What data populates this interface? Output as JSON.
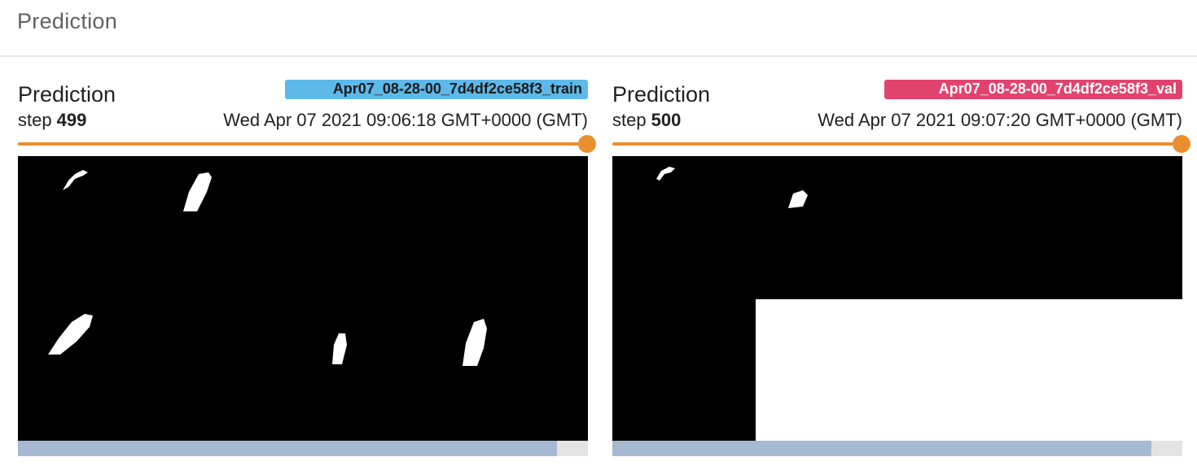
{
  "section": {
    "title": "Prediction"
  },
  "cards": [
    {
      "title": "Prediction",
      "run": "Apr07_08-28-00_7d4df2ce58f3_train",
      "run_color": "#5cb9ea",
      "step_label": "step",
      "step": "499",
      "timestamp": "Wed Apr 07 2021 09:06:18 GMT+0000 (GMT)",
      "slider_position": 1.0
    },
    {
      "title": "Prediction",
      "run": "Apr07_08-28-00_7d4df2ce58f3_val",
      "run_color": "#e1436f",
      "step_label": "step",
      "step": "500",
      "timestamp": "Wed Apr 07 2021 09:07:20 GMT+0000 (GMT)",
      "slider_position": 1.0
    }
  ],
  "colors": {
    "slider": "#ea8f2f",
    "scrollbar_thumb": "#a5b9d3",
    "scrollbar_track": "#e3e3e3"
  }
}
